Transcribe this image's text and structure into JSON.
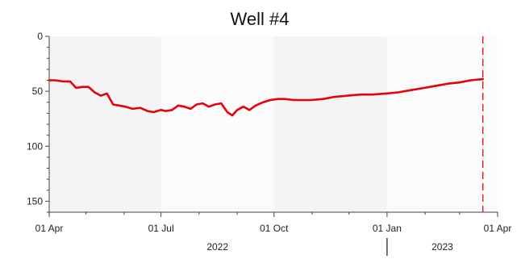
{
  "chart_data": {
    "type": "line",
    "title": "Well #4",
    "xlabel": "",
    "ylabel": "",
    "y_axis_inverted": true,
    "ylim": [
      0,
      160
    ],
    "xlim": [
      "2022-04-01",
      "2023-04-01"
    ],
    "y_ticks": [
      0,
      50,
      100,
      150
    ],
    "y_tick_labels": [
      "0",
      "50",
      "100",
      "150"
    ],
    "x_ticks": [
      "2022-04-01",
      "2022-07-01",
      "2022-10-01",
      "2023-01-01",
      "2023-04-01"
    ],
    "x_tick_labels": [
      "01 Apr",
      "01 Jul",
      "01 Oct",
      "01 Jan",
      "01 Apr"
    ],
    "year_labels": [
      {
        "label": "2022",
        "center": "2022-08-16"
      },
      {
        "label": "2023",
        "center": "2023-02-15"
      }
    ],
    "year_divider": "2023-01-01",
    "grid": false,
    "legend": "none",
    "background_bands": true,
    "colors": {
      "series": "#e8000b",
      "plot_bg": "#f4f4f4",
      "band": "#fbfbfb",
      "axis": "#444444"
    },
    "vertical_marker": {
      "x": "2023-03-20",
      "style": "dashed",
      "color": "#e8000b"
    },
    "series": [
      {
        "x": [
          "2022-04-01",
          "2022-04-06",
          "2022-04-12",
          "2022-04-18",
          "2022-04-23",
          "2022-04-28",
          "2022-05-03",
          "2022-05-08",
          "2022-05-13",
          "2022-05-18",
          "2022-05-23",
          "2022-05-28",
          "2022-06-02",
          "2022-06-08",
          "2022-06-14",
          "2022-06-20",
          "2022-06-25",
          "2022-07-01",
          "2022-07-05",
          "2022-07-10",
          "2022-07-15",
          "2022-07-20",
          "2022-07-25",
          "2022-07-30",
          "2022-08-04",
          "2022-08-09",
          "2022-08-14",
          "2022-08-19",
          "2022-08-24",
          "2022-08-28",
          "2022-09-01",
          "2022-09-06",
          "2022-09-11",
          "2022-09-16",
          "2022-09-22",
          "2022-09-28",
          "2022-10-04",
          "2022-10-10",
          "2022-10-17",
          "2022-10-24",
          "2022-10-31",
          "2022-11-10",
          "2022-11-20",
          "2022-11-30",
          "2022-12-10",
          "2022-12-20",
          "2022-12-31",
          "2023-01-10",
          "2023-01-20",
          "2023-01-31",
          "2023-02-10",
          "2023-02-20",
          "2023-03-01",
          "2023-03-10",
          "2023-03-20"
        ],
        "values": [
          40,
          40,
          41,
          41,
          47,
          46,
          46,
          51,
          54,
          52,
          62,
          63,
          64,
          66,
          65,
          68,
          69,
          67,
          68,
          67,
          63,
          64,
          66,
          62,
          61,
          64,
          62,
          61,
          69,
          72,
          67,
          64,
          67,
          63,
          60,
          58,
          57,
          57,
          58,
          58,
          58,
          57,
          55,
          54,
          53,
          53,
          52,
          51,
          49,
          47,
          45,
          43,
          42,
          40,
          39
        ]
      }
    ]
  }
}
